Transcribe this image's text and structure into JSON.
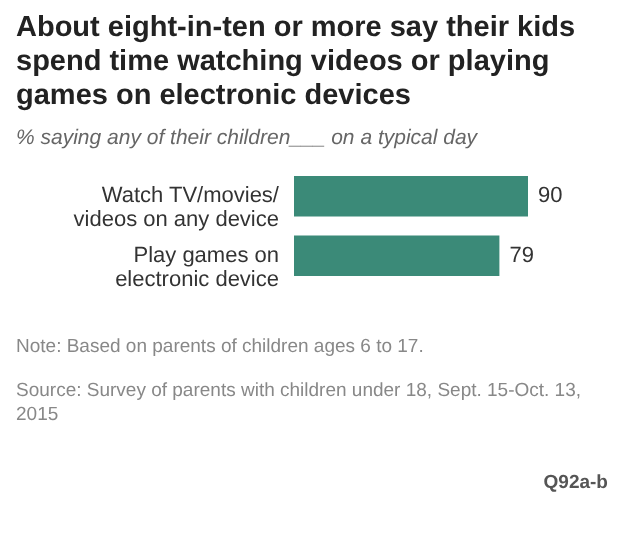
{
  "chart_data": {
    "type": "bar",
    "orientation": "horizontal",
    "title": "About eight-in-ten or more say their kids spend time watching videos or playing games on electronic devices",
    "subtitle": "% saying any of their children___ on a typical day",
    "categories": [
      "Watch TV/movies/videos on any device",
      "Play games on electronic device"
    ],
    "values": [
      90,
      79
    ],
    "color": "#3b8a78",
    "data_labels": true,
    "annotations": [
      "Note: Based on parents of children ages 6 to 17.",
      "Source: Survey of parents with children under 18, Sept. 15-Oct. 13, 2015",
      "Q92a-b"
    ]
  }
}
